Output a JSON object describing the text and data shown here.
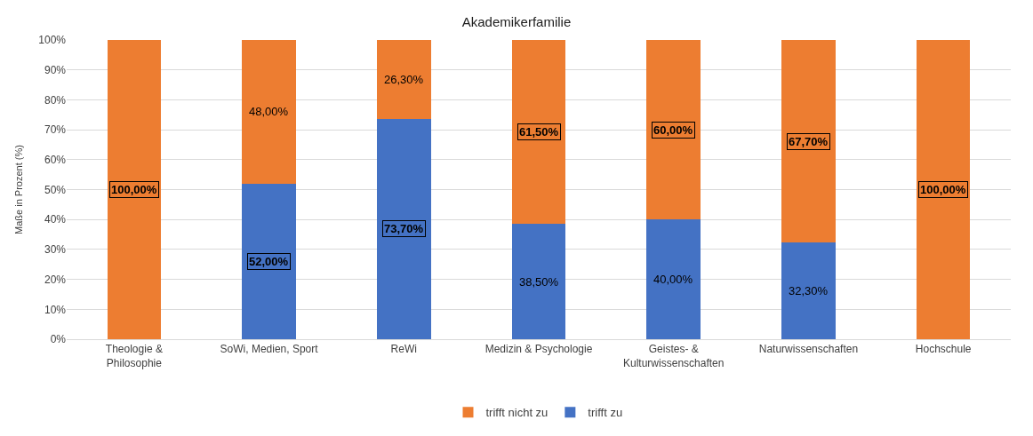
{
  "chart_data": {
    "type": "bar",
    "title": "Akademikerfamilie",
    "ylabel": "Maße in Prozent (%)",
    "categories": [
      "Theologie & Philosophie",
      "SoWi, Medien, Sport",
      "ReWi",
      "Medizin & Psychologie",
      "Geistes- & Kulturwissenschaften",
      "Naturwissenschaften",
      "Hochschule"
    ],
    "stacked": true,
    "series": [
      {
        "name": "trifft zu",
        "color": "#4472c4",
        "values": [
          0,
          52,
          73.7,
          38.5,
          40,
          32.3,
          0
        ],
        "value_labels": [
          null,
          "52,00%",
          "73,70%",
          "38,50%",
          "40,00%",
          "32,30%",
          null
        ]
      },
      {
        "name": "trifft nicht zu",
        "color": "#ed7d31",
        "values": [
          100,
          48,
          26.3,
          61.5,
          60,
          67.7,
          100
        ],
        "value_labels": [
          "100,00%",
          "48,00%",
          "26,30%",
          "61,50%",
          "60,00%",
          "67,70%",
          "100,00%"
        ]
      }
    ],
    "ylim": [
      0,
      100
    ],
    "yticks": [
      {
        "value": 0,
        "label": "0%"
      },
      {
        "value": 10,
        "label": "10%"
      },
      {
        "value": 20,
        "label": "20%"
      },
      {
        "value": 30,
        "label": "30%"
      },
      {
        "value": 40,
        "label": "40%"
      },
      {
        "value": 50,
        "label": "50%"
      },
      {
        "value": 60,
        "label": "60%"
      },
      {
        "value": 70,
        "label": "70%"
      },
      {
        "value": 80,
        "label": "80%"
      },
      {
        "value": 90,
        "label": "90%"
      },
      {
        "value": 100,
        "label": "100%"
      }
    ],
    "grid": "y",
    "legend": "bottom"
  }
}
